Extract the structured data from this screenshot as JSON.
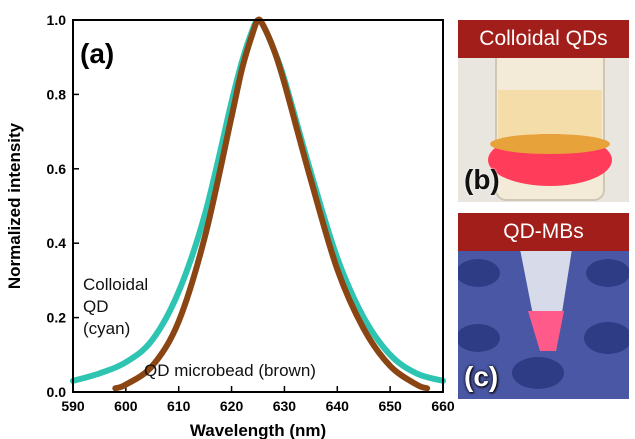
{
  "chart_data": {
    "type": "line",
    "panel_label": "(a)",
    "xlabel": "Wavelength (nm)",
    "ylabel": "Normalized intensity",
    "xlim": [
      590,
      660
    ],
    "ylim": [
      0,
      1.0
    ],
    "xticks": [
      590,
      600,
      610,
      620,
      630,
      640,
      650,
      660
    ],
    "yticks": [
      0.0,
      0.2,
      0.4,
      0.6,
      0.8,
      1.0
    ],
    "ytick_labels": [
      "0.0",
      "0.2",
      "0.4",
      "0.6",
      "0.8",
      "1.0"
    ],
    "series": [
      {
        "color": "#2ec4b2",
        "x": [
          590,
          595,
          600,
          605,
          610,
          615,
          620,
          622,
          624,
          625,
          626,
          628,
          630,
          635,
          640,
          645,
          650,
          655,
          660
        ],
        "y": [
          0.03,
          0.05,
          0.08,
          0.14,
          0.27,
          0.48,
          0.78,
          0.89,
          0.975,
          1.0,
          0.985,
          0.92,
          0.84,
          0.59,
          0.36,
          0.2,
          0.1,
          0.05,
          0.03
        ]
      },
      {
        "color": "#8b4513",
        "x": [
          598,
          600,
          605,
          610,
          615,
          620,
          622,
          624,
          625,
          626,
          628,
          630,
          635,
          640,
          645,
          650,
          655,
          657
        ],
        "y": [
          0.01,
          0.02,
          0.07,
          0.19,
          0.42,
          0.74,
          0.87,
          0.965,
          1.0,
          0.985,
          0.92,
          0.83,
          0.57,
          0.33,
          0.17,
          0.07,
          0.02,
          0.01
        ]
      }
    ],
    "annotations": [
      {
        "text": "Colloidal\nQD\n(cyan)",
        "x": 594,
        "y": 0.27
      },
      {
        "text": "QD microbead (brown)",
        "x": 614,
        "y": 0.05
      }
    ]
  },
  "photos": {
    "top": {
      "banner": "Colloidal QDs",
      "label": "(b)"
    },
    "bottom": {
      "banner": "QD-MBs",
      "label": "(c)"
    }
  },
  "colors": {
    "cyan_curve": "#2ec4b2",
    "brown_curve": "#8b4513",
    "banner": "#a21e1a"
  }
}
